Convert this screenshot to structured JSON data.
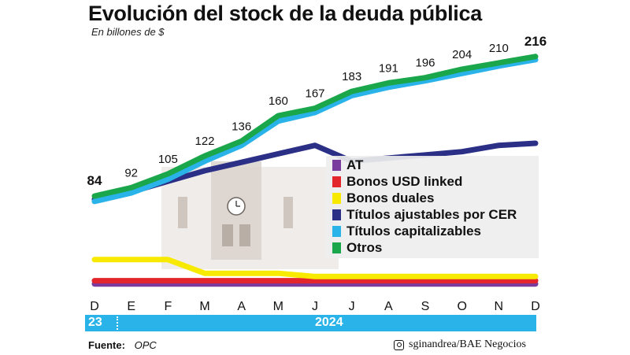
{
  "header": {
    "title": "Evolución del stock de la deuda pública",
    "subtitle": "En billones de $"
  },
  "chart_data": {
    "type": "line",
    "title": "Evolución del stock de la deuda pública",
    "subtitle": "En billones de $",
    "categories": [
      "D",
      "E",
      "F",
      "M",
      "A",
      "M",
      "J",
      "J",
      "A",
      "S",
      "O",
      "N",
      "D"
    ],
    "year_labels": [
      "23",
      "2024"
    ],
    "total_labels": [
      "84",
      "92",
      "105",
      "122",
      "136",
      "160",
      "167",
      "183",
      "191",
      "196",
      "204",
      "210",
      "216"
    ],
    "ylim": [
      0,
      230
    ],
    "grid": false,
    "legend_position": "right",
    "series": [
      {
        "name": "AT",
        "color": "#7a3b9e",
        "values": [
          1,
          1,
          1,
          1,
          1,
          1,
          1,
          1,
          1,
          1,
          1,
          1,
          1
        ]
      },
      {
        "name": "Bonos USD linked",
        "color": "#e3262b",
        "values": [
          4,
          4,
          4,
          4,
          4,
          4,
          4,
          4,
          4,
          4,
          4,
          4,
          4
        ]
      },
      {
        "name": "Bonos duales",
        "color": "#f7ea00",
        "values": [
          24,
          24,
          24,
          11,
          11,
          11,
          8,
          8,
          8,
          8,
          8,
          8,
          8
        ]
      },
      {
        "name": "Títulos ajustables por CER",
        "color": "#2b2f86",
        "values": [
          81,
          88,
          98,
          108,
          116,
          124,
          132,
          117,
          120,
          123,
          126,
          132,
          134
        ]
      },
      {
        "name": "Títulos capitalizables",
        "color": "#29b3e8",
        "values": [
          79,
          87,
          100,
          117,
          132,
          155,
          163,
          179,
          187,
          193,
          200,
          207,
          213
        ]
      },
      {
        "name": "Otros",
        "color": "#1aa64a",
        "values": [
          84,
          92,
          105,
          122,
          136,
          160,
          167,
          183,
          191,
          196,
          204,
          210,
          216
        ]
      }
    ]
  },
  "source": {
    "label": "Fuente:",
    "value": "OPC"
  },
  "credit": {
    "icon": "instagram-icon",
    "text": "sginandrea/BAE Negocios"
  }
}
